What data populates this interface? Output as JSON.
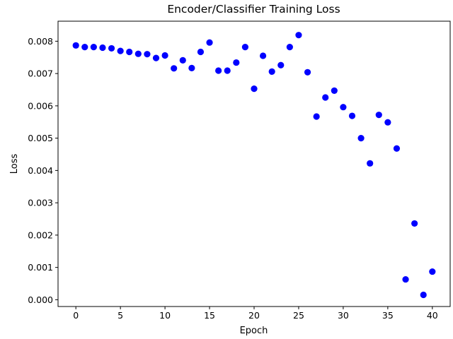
{
  "chart_data": {
    "type": "scatter",
    "title": "Encoder/Classifier Training Loss",
    "xlabel": "Epoch",
    "ylabel": "Loss",
    "xlim": [
      -2,
      42
    ],
    "ylim": [
      -0.00021,
      0.00862
    ],
    "xticks": [
      0,
      5,
      10,
      15,
      20,
      25,
      30,
      35,
      40
    ],
    "xtick_labels": [
      "0",
      "5",
      "10",
      "15",
      "20",
      "25",
      "30",
      "35",
      "40"
    ],
    "yticks": [
      0.0,
      0.001,
      0.002,
      0.003,
      0.004,
      0.005,
      0.006,
      0.007,
      0.008
    ],
    "ytick_labels": [
      "0.000",
      "0.001",
      "0.002",
      "0.003",
      "0.004",
      "0.005",
      "0.006",
      "0.007",
      "0.008"
    ],
    "grid": false,
    "marker_color": "#0000ff",
    "x": [
      0,
      1,
      2,
      3,
      4,
      5,
      6,
      7,
      8,
      9,
      10,
      11,
      12,
      13,
      14,
      15,
      16,
      17,
      18,
      19,
      20,
      21,
      22,
      23,
      24,
      25,
      26,
      27,
      28,
      29,
      30,
      31,
      32,
      33,
      34,
      35,
      36,
      37,
      38,
      39,
      40
    ],
    "y": [
      0.00787,
      0.00782,
      0.00782,
      0.0078,
      0.00778,
      0.0077,
      0.00767,
      0.00761,
      0.0076,
      0.00748,
      0.00756,
      0.00716,
      0.00741,
      0.00717,
      0.00767,
      0.00796,
      0.00709,
      0.00709,
      0.00734,
      0.00782,
      0.00653,
      0.00755,
      0.00706,
      0.00726,
      0.00782,
      0.00819,
      0.00704,
      0.00567,
      0.00626,
      0.00647,
      0.00596,
      0.00569,
      0.005,
      0.00422,
      0.00572,
      0.00549,
      0.00468,
      0.00063,
      0.00236,
      0.00015,
      0.00087
    ]
  }
}
